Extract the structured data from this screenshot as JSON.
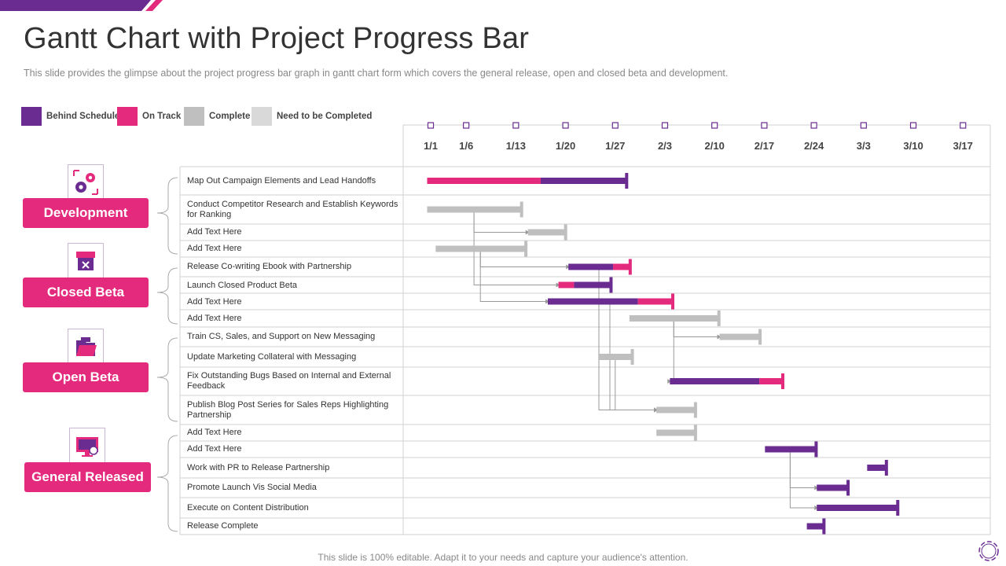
{
  "title": "Gantt Chart with Project Progress Bar",
  "subtitle": "This slide provides  the glimpse about the project progress  bar graph  in gantt chart form which covers the general release,  open and closed beta and development.",
  "footer": "This slide is 100% editable. Adapt it to your needs and capture your audience's attention.",
  "colors": {
    "behind": "#6a2c91",
    "ontrack": "#e42a7d",
    "complete": "#bfbfbf",
    "todo": "#d9d9d9",
    "accent": "#6a2c91",
    "grid": "#d0d0d0"
  },
  "legend": [
    {
      "label": "Behind Schedule",
      "color": "#6a2c91"
    },
    {
      "label": "On Track",
      "color": "#e42a7d"
    },
    {
      "label": "Complete",
      "color": "#bfbfbf"
    },
    {
      "label": "Need to be Completed",
      "color": "#d9d9d9"
    }
  ],
  "phases": [
    {
      "label": "Development",
      "icon": "gears-icon"
    },
    {
      "label": "Closed Beta",
      "icon": "shop-closed-icon"
    },
    {
      "label": "Open Beta",
      "icon": "open-folder-icon"
    },
    {
      "label": "General Released",
      "icon": "monitor-release-icon"
    }
  ],
  "chart_data": {
    "type": "gantt",
    "date_labels": [
      "1/1",
      "1/6",
      "1/13",
      "1/20",
      "1/27",
      "2/3",
      "2/10",
      "2/17",
      "2/24",
      "3/3",
      "3/10",
      "3/17"
    ],
    "time_unit": "days since 1/1",
    "tick_days": [
      0,
      5,
      12,
      19,
      26,
      33,
      40,
      47,
      54,
      61,
      68,
      75
    ],
    "tasks": [
      {
        "name": "Map Out Campaign Elements  and Lead Handoffs",
        "phase": "Development",
        "segments": [
          {
            "start": -0.5,
            "end": 15.5,
            "status": "ontrack"
          },
          {
            "start": 15.5,
            "end": 27.5,
            "status": "behind"
          }
        ]
      },
      {
        "name": "Conduct Competitor Research and Establish Keywords for Ranking",
        "phase": "Development",
        "segments": [
          {
            "start": -0.5,
            "end": 12.7,
            "status": "complete"
          }
        ]
      },
      {
        "name": "Add Text Here",
        "phase": "Development",
        "segments": [
          {
            "start": 13.7,
            "end": 18.9,
            "status": "complete"
          }
        ]
      },
      {
        "name": "Add Text Here",
        "phase": "Development",
        "segments": [
          {
            "start": 0.7,
            "end": 13.3,
            "status": "complete"
          }
        ]
      },
      {
        "name": "Release Co-writing Ebook  with  Partnership",
        "phase": "Closed Beta",
        "segments": [
          {
            "start": 19.4,
            "end": 25.7,
            "status": "behind"
          },
          {
            "start": 25.7,
            "end": 28.0,
            "status": "ontrack"
          }
        ]
      },
      {
        "name": "Launch Closed Product Beta",
        "phase": "Closed Beta",
        "segments": [
          {
            "start": 18.0,
            "end": 20.2,
            "status": "ontrack"
          },
          {
            "start": 20.2,
            "end": 25.3,
            "status": "behind"
          }
        ]
      },
      {
        "name": "Add Text Here",
        "phase": "Closed Beta",
        "segments": [
          {
            "start": 16.5,
            "end": 29.2,
            "status": "behind"
          },
          {
            "start": 29.2,
            "end": 34.0,
            "status": "ontrack"
          }
        ]
      },
      {
        "name": "Add Text Here",
        "phase": "Closed Beta",
        "segments": [
          {
            "start": 28.0,
            "end": 40.5,
            "status": "complete"
          }
        ]
      },
      {
        "name": "Train CS,  Sales, and Support on New Messaging",
        "phase": "Open Beta",
        "segments": [
          {
            "start": 40.7,
            "end": 46.3,
            "status": "complete"
          }
        ]
      },
      {
        "name": "Update Marketing Collateral with Messaging",
        "phase": "Open Beta",
        "segments": [
          {
            "start": 23.7,
            "end": 28.3,
            "status": "complete"
          }
        ]
      },
      {
        "name": "Fix Outstanding Bugs Based on Internal and External Feedback",
        "phase": "Open Beta",
        "segments": [
          {
            "start": 33.7,
            "end": 46.3,
            "status": "behind"
          },
          {
            "start": 46.3,
            "end": 49.5,
            "status": "ontrack"
          }
        ]
      },
      {
        "name": "Publish Blog Post Series for Sales Reps Highlighting Partnership",
        "phase": "Open Beta",
        "segments": [
          {
            "start": 31.8,
            "end": 37.2,
            "status": "complete"
          }
        ]
      },
      {
        "name": "Add Text Here",
        "phase": "General Released",
        "segments": [
          {
            "start": 31.8,
            "end": 37.2,
            "status": "complete"
          }
        ]
      },
      {
        "name": "Add Text Here",
        "phase": "General Released",
        "segments": [
          {
            "start": 47.1,
            "end": 54.2,
            "status": "behind"
          }
        ]
      },
      {
        "name": "Work with PR to Release Partnership",
        "phase": "General Released",
        "segments": [
          {
            "start": 61.5,
            "end": 64.1,
            "status": "behind"
          }
        ]
      },
      {
        "name": "Promote Launch Vis Social Media",
        "phase": "General Released",
        "segments": [
          {
            "start": 54.4,
            "end": 58.7,
            "status": "behind"
          }
        ]
      },
      {
        "name": "Execute on Content Distribution",
        "phase": "General Released",
        "segments": [
          {
            "start": 54.4,
            "end": 65.7,
            "status": "behind"
          }
        ]
      },
      {
        "name": "Release Complete",
        "phase": "General Released",
        "segments": [
          {
            "start": 53.0,
            "end": 55.3,
            "status": "behind"
          }
        ]
      }
    ],
    "dependencies": [
      {
        "from": 1,
        "to": 2
      },
      {
        "from": 1,
        "to": 5
      },
      {
        "from": 3,
        "to": 4
      },
      {
        "from": 3,
        "to": 6
      },
      {
        "from": 7,
        "to": 8
      },
      {
        "from": 7,
        "to": 10
      },
      {
        "from": 6,
        "to": 11
      },
      {
        "from": 4,
        "to": 11
      },
      {
        "from": 9,
        "to": 11
      },
      {
        "from": 13,
        "to": 15
      },
      {
        "from": 13,
        "to": 16
      }
    ]
  }
}
